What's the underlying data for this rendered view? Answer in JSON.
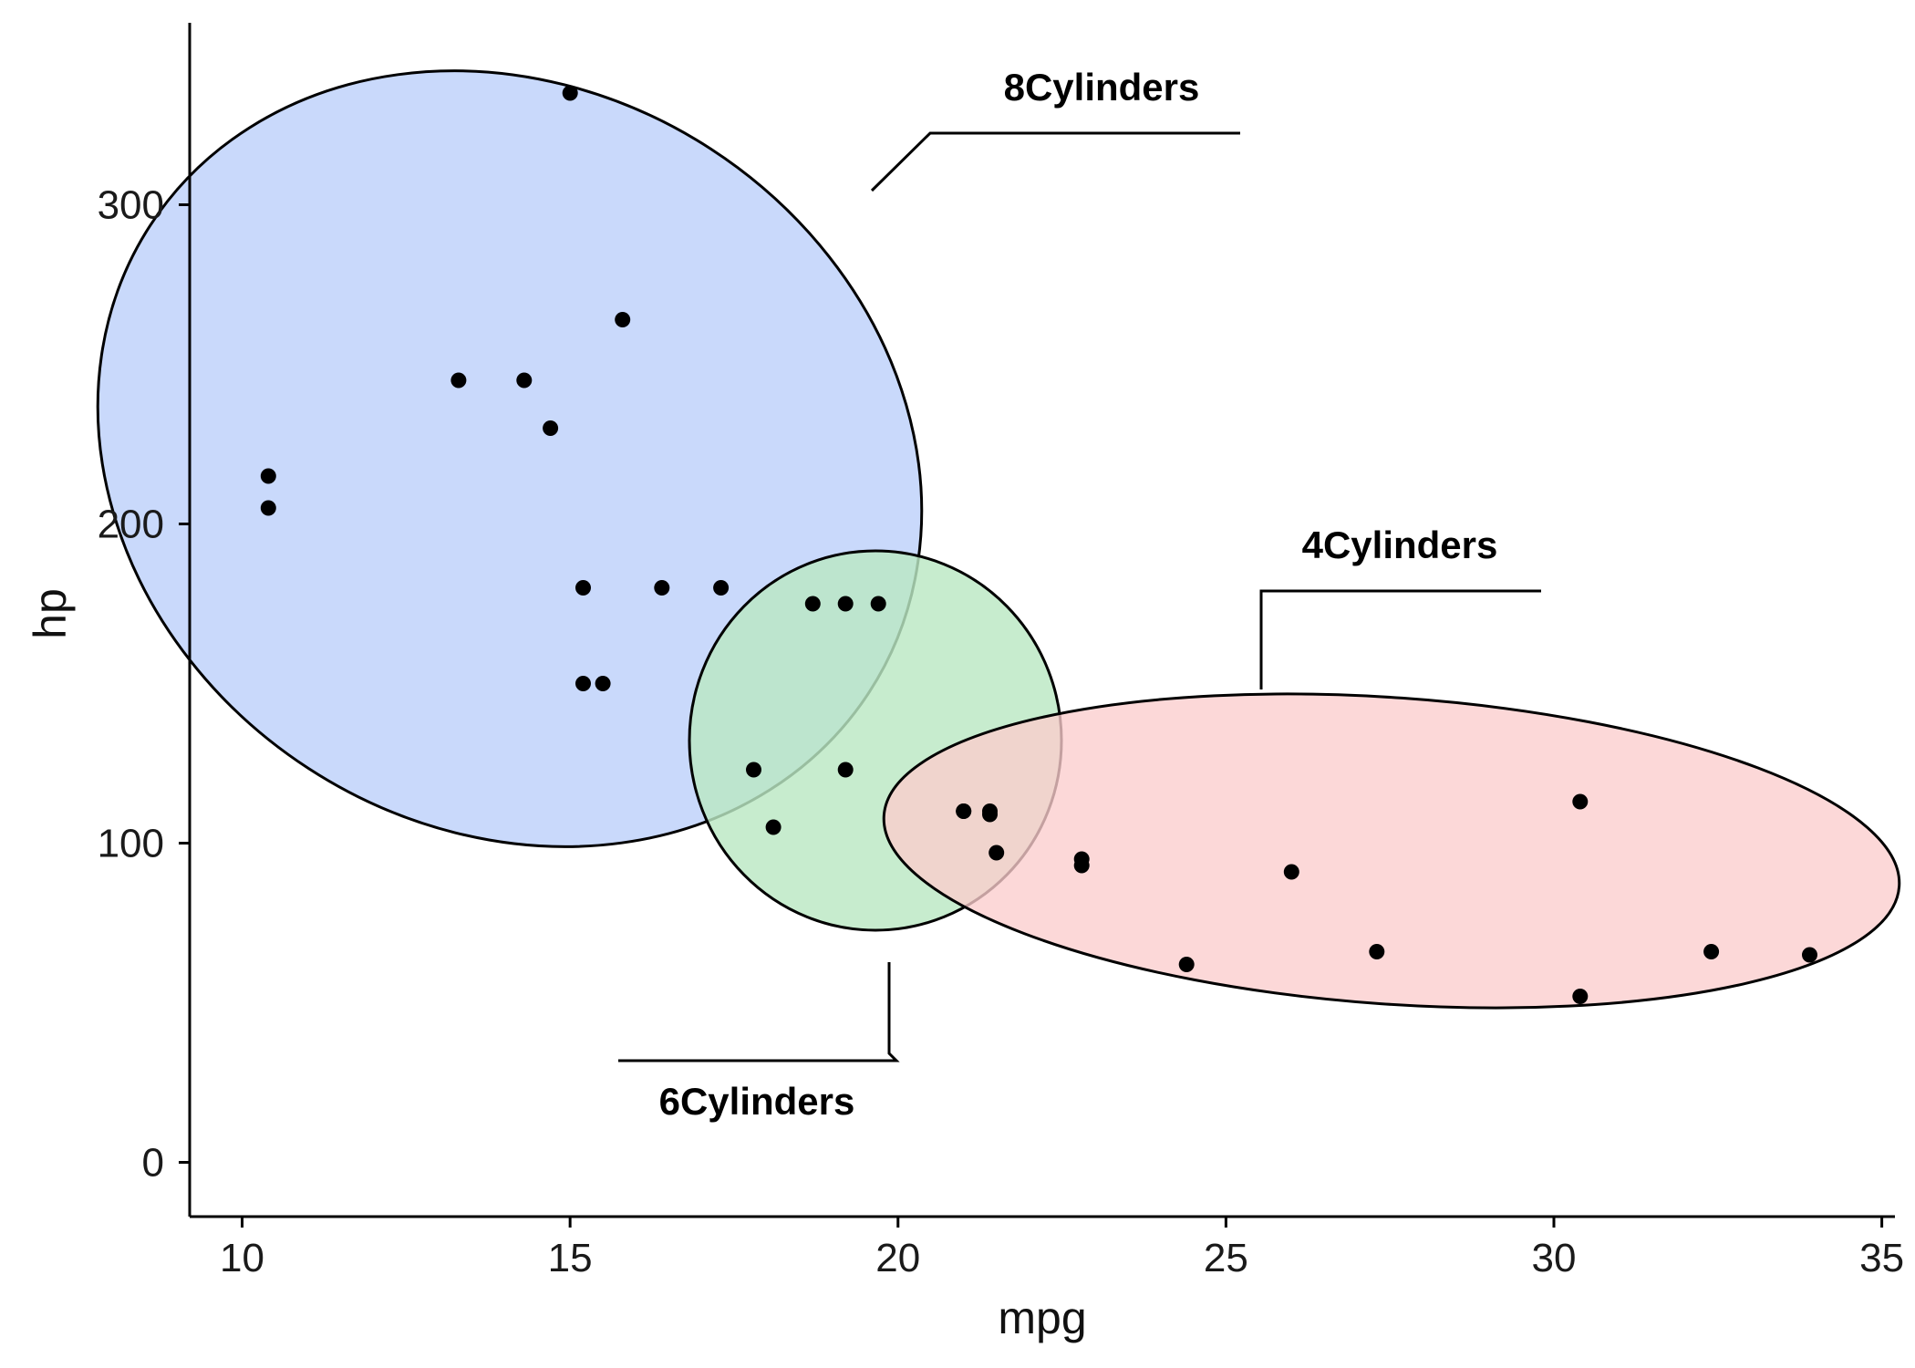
{
  "chart_data": {
    "type": "scatter",
    "xlabel": "mpg",
    "ylabel": "hp",
    "xlim": [
      9.2,
      35.2
    ],
    "ylim": [
      -17,
      357
    ],
    "xticks": [
      10,
      15,
      20,
      25,
      30,
      35
    ],
    "yticks": [
      0,
      100,
      200,
      300
    ],
    "grid": false,
    "groups": [
      {
        "label": "8Cylinders",
        "color": "#c9d9fb",
        "points": [
          [
            18.7,
            175
          ],
          [
            14.3,
            245
          ],
          [
            16.4,
            180
          ],
          [
            17.3,
            180
          ],
          [
            15.2,
            180
          ],
          [
            10.4,
            205
          ],
          [
            10.4,
            215
          ],
          [
            14.7,
            230
          ],
          [
            15.5,
            150
          ],
          [
            15.2,
            150
          ],
          [
            13.3,
            245
          ],
          [
            19.2,
            175
          ],
          [
            15.8,
            264
          ],
          [
            15.0,
            335
          ]
        ]
      },
      {
        "label": "6Cylinders",
        "color": "#bbe8c3",
        "points": [
          [
            21.0,
            110
          ],
          [
            21.0,
            110
          ],
          [
            21.4,
            110
          ],
          [
            18.1,
            105
          ],
          [
            19.2,
            123
          ],
          [
            17.8,
            123
          ],
          [
            19.7,
            175
          ]
        ]
      },
      {
        "label": "4Cylinders",
        "color": "#fbcdcd",
        "points": [
          [
            22.8,
            93
          ],
          [
            24.4,
            62
          ],
          [
            22.8,
            95
          ],
          [
            32.4,
            66
          ],
          [
            30.4,
            52
          ],
          [
            33.9,
            65
          ],
          [
            21.5,
            97
          ],
          [
            27.3,
            66
          ],
          [
            26.0,
            91
          ],
          [
            30.4,
            113
          ],
          [
            21.4,
            109
          ]
        ]
      }
    ]
  }
}
